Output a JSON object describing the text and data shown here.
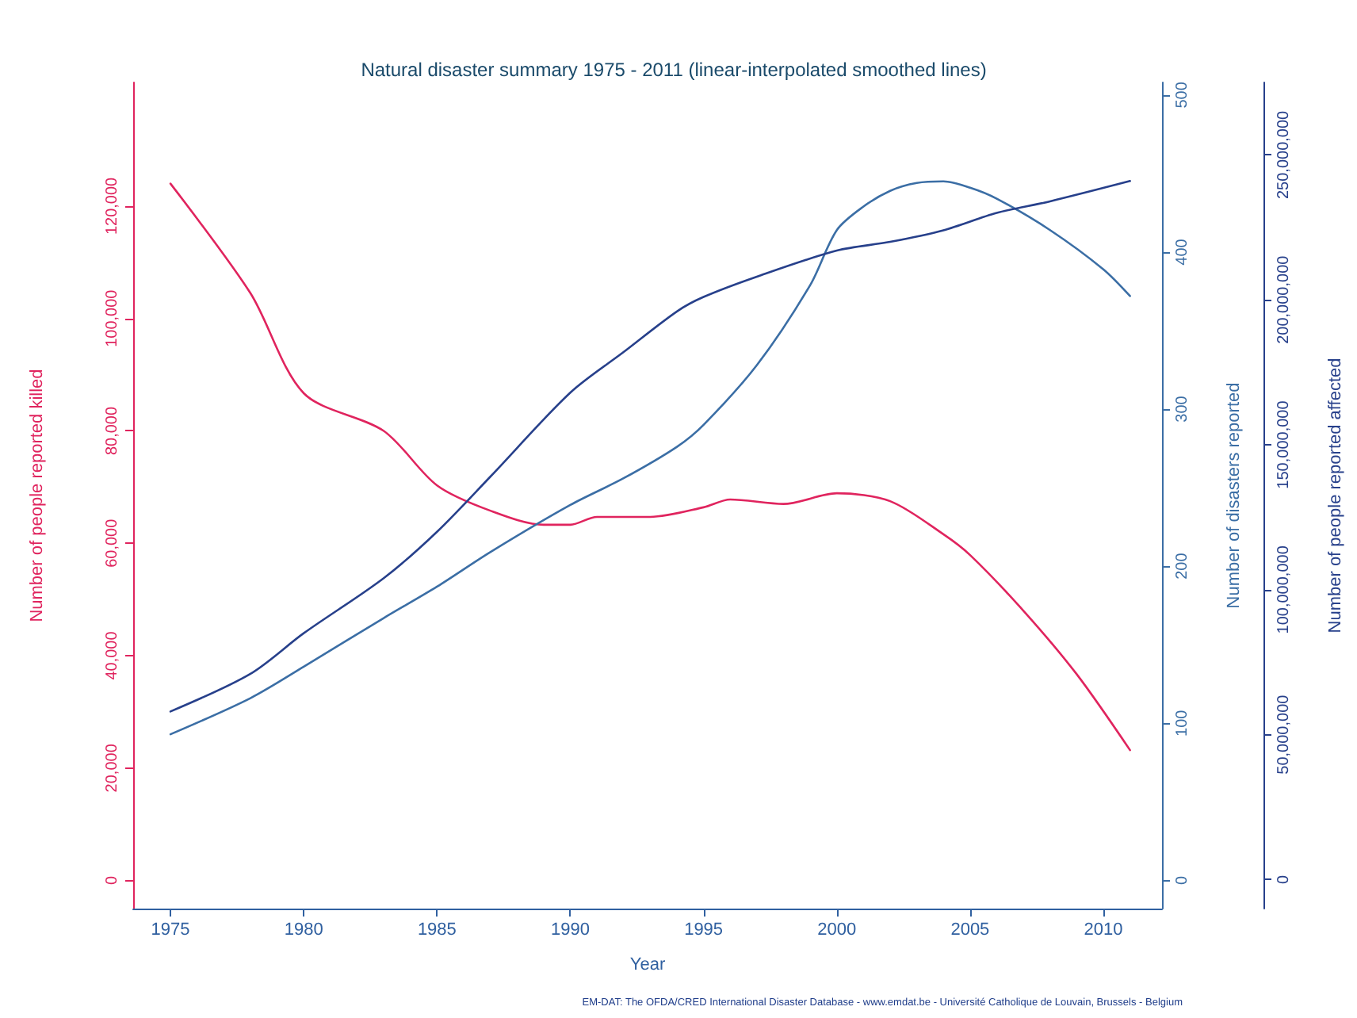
{
  "chart_data": {
    "type": "line",
    "title": "Natural disaster summary 1975 - 2011 (linear-interpolated smoothed lines)",
    "xlabel": "Year",
    "ylabel": "Number of people reported killed",
    "y2label": "Number of disasters reported",
    "y3label": "Number of people reported affected",
    "annotations": [
      "EM-DAT: The OFDA/CRED International Disaster Database - www.emdat.be - Université Catholique de Louvain, Brussels - Belgium"
    ],
    "xlim": [
      1973.6,
      2012.2
    ],
    "xticks": [
      1975,
      1980,
      1985,
      1990,
      1995,
      2000,
      2005,
      2010
    ],
    "ylim": [
      -5000,
      142000
    ],
    "yticks": [
      0,
      {
        "value": 20000,
        "label": "20,000"
      },
      {
        "value": 40000,
        "label": "40,000"
      },
      {
        "value": 60000,
        "label": "60,000"
      },
      {
        "value": 80000,
        "label": "80,000"
      },
      {
        "value": 100000,
        "label": "100,000"
      },
      {
        "value": 120000,
        "label": "120,000"
      }
    ],
    "y2lim": [
      -18,
      508
    ],
    "y2ticks": [
      0,
      100,
      200,
      300,
      400,
      500
    ],
    "y3lim": [
      -10000000,
      275000000
    ],
    "y3ticks": [
      0,
      {
        "value": 50000000,
        "label": "50,000,000"
      },
      {
        "value": 100000000,
        "label": "100,000,000"
      },
      {
        "value": 150000000,
        "label": "150,000,000"
      },
      {
        "value": 200000000,
        "label": "200,000,000"
      },
      {
        "value": 250000000,
        "label": "250,000,000"
      }
    ],
    "grid": false,
    "marker": "none",
    "line_style": "solid",
    "series": [
      {
        "axis": "y",
        "color": "#e0245e",
        "x": [
          1975,
          1978,
          1980,
          1983,
          1985,
          1987,
          1989,
          1990,
          1991,
          1993,
          1995,
          1996,
          1998,
          2000,
          2002,
          2004,
          2005,
          2007,
          2009,
          2011
        ],
        "values": [
          124000,
          104500,
          86700,
          80000,
          70300,
          65800,
          63300,
          63300,
          64700,
          64700,
          66400,
          67800,
          67000,
          68900,
          67500,
          61600,
          57900,
          48000,
          36700,
          23200
        ]
      },
      {
        "axis": "y2",
        "color": "#3b6ea5",
        "x": [
          1975,
          1978,
          1980,
          1983,
          1985,
          1987,
          1990,
          1992,
          1994,
          1995,
          1997,
          1999,
          2000,
          2001,
          2002,
          2003,
          2004,
          2005,
          2006,
          2008,
          2010,
          2011
        ],
        "values": [
          93,
          116,
          136,
          167,
          187,
          209,
          239,
          256,
          276,
          290,
          328,
          379,
          414,
          429,
          439,
          444,
          445,
          441,
          434,
          414,
          389,
          372
        ]
      },
      {
        "axis": "y3",
        "color": "#27408b",
        "x": [
          1975,
          1978,
          1980,
          1983,
          1985,
          1987,
          1990,
          1992,
          1994,
          1995,
          1997,
          2000,
          2002,
          2004,
          2006,
          2008,
          2011
        ],
        "values": [
          58000000,
          71000000,
          85000000,
          104000000,
          120000000,
          139000000,
          168000000,
          182000000,
          196000000,
          201000000,
          208000000,
          217000000,
          220000000,
          224000000,
          230000000,
          234000000,
          241000000
        ]
      }
    ]
  }
}
